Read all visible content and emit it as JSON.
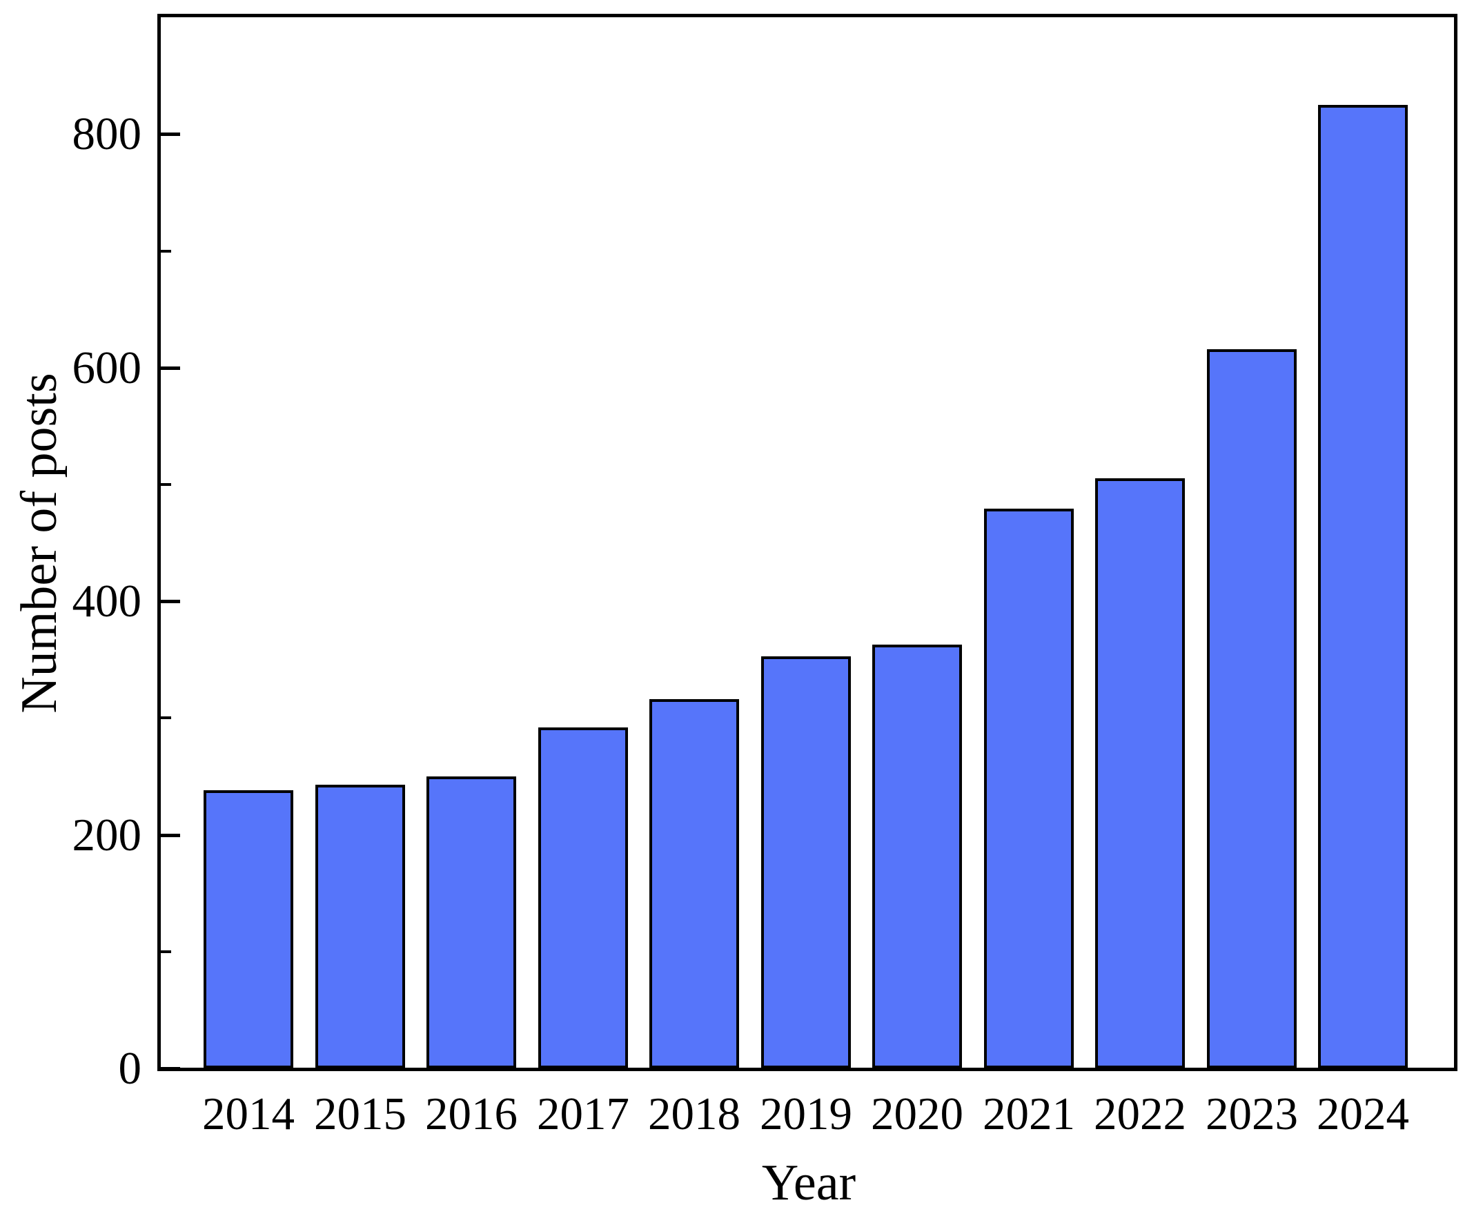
{
  "chart_data": {
    "type": "bar",
    "title": "",
    "categories": [
      "2014",
      "2015",
      "2016",
      "2017",
      "2018",
      "2019",
      "2020",
      "2021",
      "2022",
      "2023",
      "2024"
    ],
    "values": [
      238,
      243,
      250,
      292,
      316,
      353,
      363,
      479,
      505,
      616,
      825
    ],
    "xlabel": "Year",
    "ylabel": "Number of posts",
    "ylim": [
      0,
      903
    ],
    "yticks_major": [
      0,
      200,
      400,
      600,
      800
    ],
    "yticks_minor": [
      100,
      300,
      500,
      700
    ],
    "grid": false,
    "legend": null,
    "tick_direction": "in",
    "bar_color": "#5675FA",
    "bar_edge_color": "#000000",
    "frame_color": "#000000",
    "background_color": "#ffffff"
  }
}
